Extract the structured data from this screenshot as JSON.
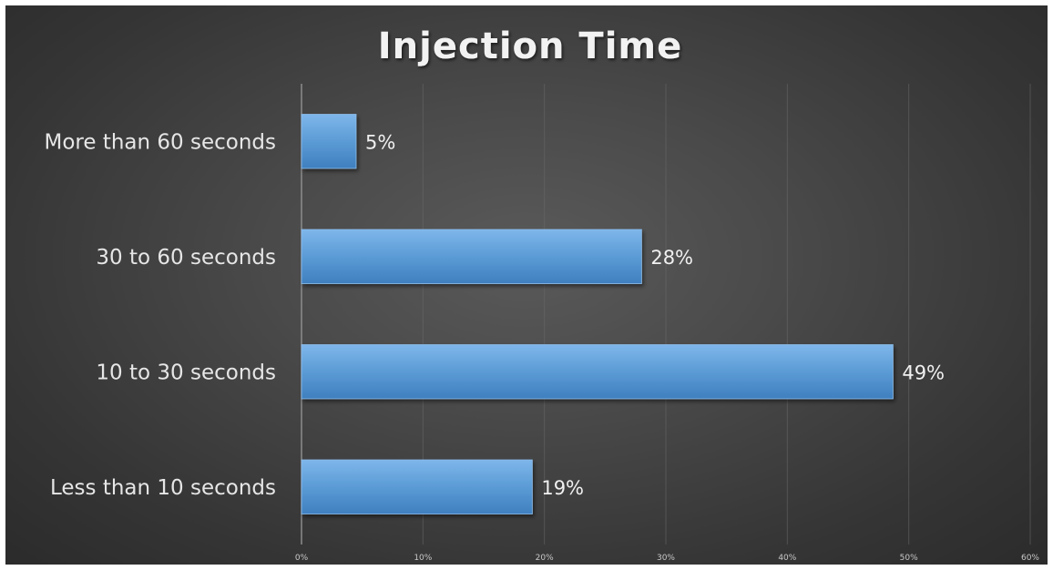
{
  "chart_data": {
    "type": "bar",
    "orientation": "horizontal",
    "title": "Injection Time",
    "categories": [
      "More than 60 seconds",
      "30 to 60 seconds",
      "10 to 30 seconds",
      "Less than 10 seconds"
    ],
    "values": [
      4.5,
      28,
      48.7,
      19
    ],
    "data_labels": [
      "5%",
      "28%",
      "49%",
      "19%"
    ],
    "xlim": [
      0,
      60
    ],
    "xticks": [
      0,
      10,
      20,
      30,
      40,
      50,
      60
    ],
    "xtick_labels": [
      "0%",
      "10%",
      "20%",
      "30%",
      "40%",
      "50%",
      "60%"
    ],
    "xlabel": "",
    "ylabel": "",
    "grid": true,
    "legend": "none",
    "bar_color": "#5b9bd5",
    "background_color": "#404040"
  }
}
